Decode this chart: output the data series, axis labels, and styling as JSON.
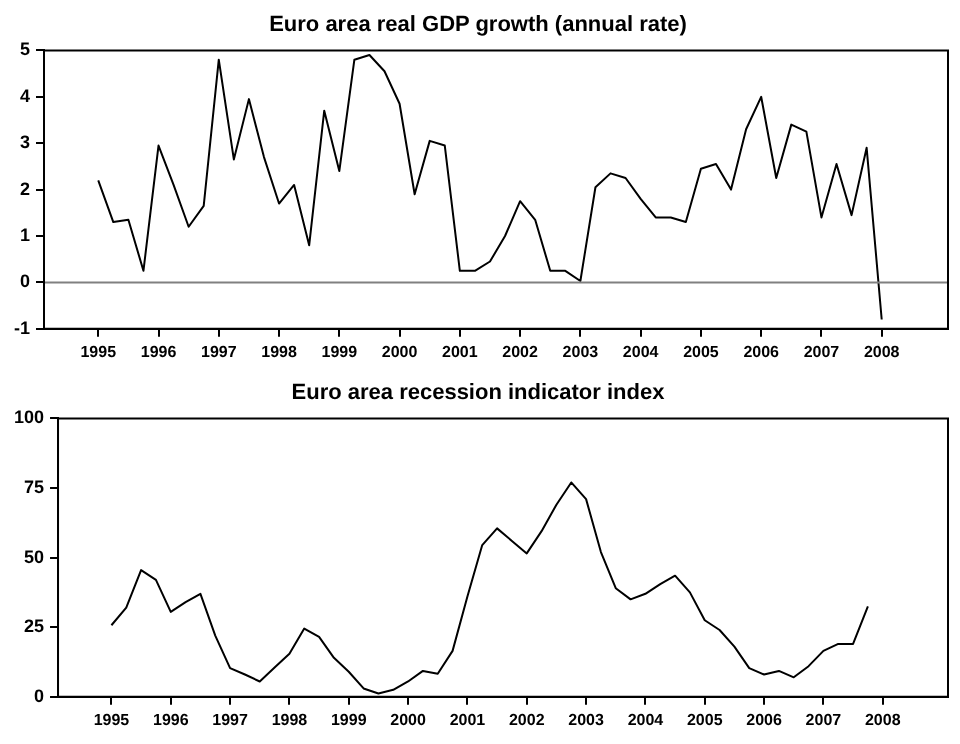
{
  "chart_data": [
    {
      "type": "line",
      "title": "Euro area real GDP growth (annual rate)",
      "x": [
        1995,
        1995.25,
        1995.5,
        1995.75,
        1996,
        1996.25,
        1996.5,
        1996.75,
        1997,
        1997.25,
        1997.5,
        1997.75,
        1998,
        1998.25,
        1998.5,
        1998.75,
        1999,
        1999.25,
        1999.5,
        1999.75,
        2000,
        2000.25,
        2000.5,
        2000.75,
        2001,
        2001.25,
        2001.5,
        2001.75,
        2002,
        2002.25,
        2002.5,
        2002.75,
        2003,
        2003.25,
        2003.5,
        2003.75,
        2004,
        2004.25,
        2004.5,
        2004.75,
        2005,
        2005.25,
        2005.5,
        2005.75,
        2006,
        2006.25,
        2006.5,
        2006.75,
        2007,
        2007.25,
        2007.5,
        2007.75,
        2008
      ],
      "series": [
        {
          "color": "#000000",
          "values": [
            2.2,
            1.3,
            1.35,
            0.25,
            2.95,
            2.1,
            1.2,
            1.65,
            4.8,
            2.65,
            3.95,
            2.7,
            1.7,
            2.1,
            0.8,
            3.7,
            2.4,
            4.8,
            4.9,
            4.55,
            3.85,
            1.9,
            3.05,
            2.95,
            0.25,
            0.25,
            0.45,
            1.0,
            1.75,
            1.35,
            0.25,
            0.25,
            0.03,
            2.05,
            2.35,
            2.25,
            1.8,
            1.4,
            1.4,
            1.3,
            2.45,
            2.55,
            2.0,
            3.3,
            4.0,
            2.25,
            3.4,
            3.25,
            1.4,
            2.55,
            1.45,
            2.9,
            -0.8
          ]
        }
      ],
      "xlim": [
        1994.1,
        2009.1
      ],
      "ylim": [
        -1,
        5
      ],
      "yticks": [
        -1,
        0,
        1,
        2,
        3,
        4,
        5
      ],
      "xticks": [
        1995,
        1996,
        1997,
        1998,
        1999,
        2000,
        2001,
        2002,
        2003,
        2004,
        2005,
        2006,
        2007,
        2008
      ],
      "ref_lines": [
        {
          "axis": "y",
          "value": 0,
          "color": "#808080"
        }
      ],
      "grid": false,
      "legend": false,
      "marker": "none",
      "line_style": "solid"
    },
    {
      "type": "line",
      "title": "Euro area recession indicator index",
      "x": [
        1995,
        1995.25,
        1995.5,
        1995.75,
        1996,
        1996.25,
        1996.5,
        1996.75,
        1997,
        1997.25,
        1997.5,
        1997.75,
        1998,
        1998.25,
        1998.5,
        1998.75,
        1999,
        1999.25,
        1999.5,
        1999.75,
        2000,
        2000.25,
        2000.5,
        2000.75,
        2001,
        2001.25,
        2001.5,
        2001.75,
        2002,
        2002.25,
        2002.5,
        2002.75,
        2003,
        2003.25,
        2003.5,
        2003.75,
        2004,
        2004.25,
        2004.5,
        2004.75,
        2005,
        2005.25,
        2005.5,
        2005.75,
        2006,
        2006.25,
        2006.5,
        2006.75,
        2007,
        2007.25,
        2007.5,
        2007.75
      ],
      "series": [
        {
          "color": "#000000",
          "values": [
            25.7,
            32,
            45.5,
            42,
            30.5,
            34,
            37,
            22,
            10.3,
            8,
            5.5,
            10.5,
            15.5,
            24.5,
            21.5,
            14,
            9,
            3,
            1.2,
            2.5,
            5.5,
            9.3,
            8.3,
            16.5,
            36,
            54.5,
            60.5,
            56,
            51.5,
            59.5,
            69,
            77,
            71,
            52,
            39,
            35,
            37,
            40.5,
            43.5,
            37.5,
            27.5,
            24,
            18,
            10.3,
            8,
            9.3,
            7,
            11,
            16.5,
            19,
            19,
            32.5
          ]
        }
      ],
      "xlim": [
        1994.1,
        2009.1
      ],
      "ylim": [
        0,
        100
      ],
      "yticks": [
        0,
        25,
        50,
        75,
        100
      ],
      "xticks": [
        1995,
        1996,
        1997,
        1998,
        1999,
        2000,
        2001,
        2002,
        2003,
        2004,
        2005,
        2006,
        2007,
        2008
      ],
      "grid": false,
      "legend": false,
      "marker": "none",
      "line_style": "solid"
    }
  ]
}
